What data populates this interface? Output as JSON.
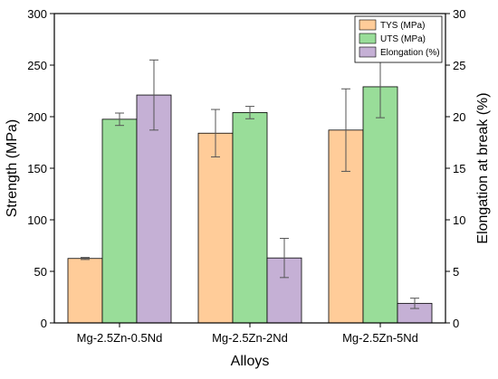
{
  "chart_data": {
    "type": "bar",
    "title": "",
    "xlabel": "Alloys",
    "ylabel": "Strength (MPa)",
    "y2label": "Elongation at break (%)",
    "categories": [
      "Mg-2.5Zn-0.5Nd",
      "Mg-2.5Zn-2Nd",
      "Mg-2.5Zn-5Nd"
    ],
    "ylim": [
      0,
      300
    ],
    "y2lim": [
      0,
      30
    ],
    "yticks": [
      0,
      50,
      100,
      150,
      200,
      250,
      300
    ],
    "y2ticks": [
      0,
      5,
      10,
      15,
      20,
      25,
      30
    ],
    "grid": false,
    "legend_position": "top-right",
    "series": [
      {
        "name": "TYS (MPa)",
        "axis": "left",
        "color": "#ffcc99",
        "values": [
          62.5,
          184,
          187
        ],
        "errors": [
          1,
          23,
          40
        ]
      },
      {
        "name": "UTS (MPa)",
        "axis": "left",
        "color": "#99dd99",
        "values": [
          197.5,
          204,
          229
        ],
        "errors": [
          6,
          6,
          30
        ]
      },
      {
        "name": "Elongation (%)",
        "axis": "right",
        "color": "#c5b0d5",
        "values": [
          22.1,
          6.3,
          1.9
        ],
        "errors": [
          3.4,
          1.9,
          0.5
        ]
      }
    ]
  }
}
